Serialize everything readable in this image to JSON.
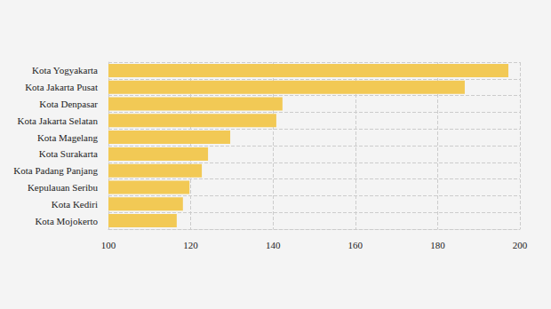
{
  "chart_data": {
    "type": "bar",
    "orientation": "horizontal",
    "categories": [
      "Kota Yogyakarta",
      "Kota Jakarta Pusat",
      "Kota Denpasar",
      "Kota Jakarta Selatan",
      "Kota Magelang",
      "Kota Surakarta",
      "Kota Padang Panjang",
      "Kepulauan Seribu",
      "Kota Kediri",
      "Kota Mojokerto"
    ],
    "values": [
      197.2,
      186.6,
      142.3,
      140.8,
      129.6,
      124.2,
      122.7,
      119.7,
      118.1,
      116.6
    ],
    "color": "#f2c955",
    "xlim": [
      100,
      200
    ],
    "xticks": [
      100,
      120,
      140,
      160,
      180,
      200
    ],
    "grid": true
  }
}
